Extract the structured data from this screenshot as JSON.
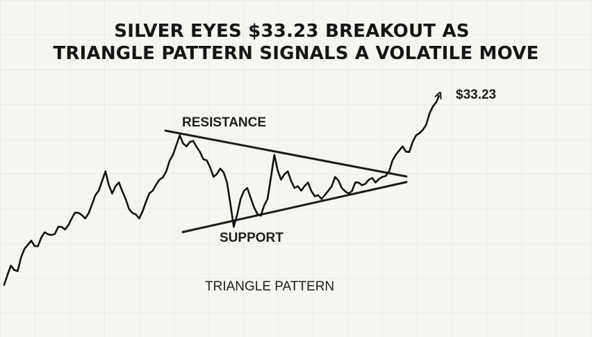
{
  "headline": {
    "line1": "SILVER EYES $33.23 BREAKOUT AS",
    "line2": "TRIANGLE PATTERN SIGNALS A VOLATILE MOVE"
  },
  "chart_data": {
    "type": "line",
    "title": "SILVER EYES $33.23 BREAKOUT AS TRIANGLE PATTERN SIGNALS A VOLATILE MOVE",
    "xlabel": "",
    "ylabel": "",
    "grid": true,
    "legend": "none",
    "series": [
      {
        "values": [
          26.5,
          27.2,
          27.0,
          27.8,
          28.1,
          27.9,
          28.4,
          28.3,
          28.6,
          28.5,
          28.9,
          29.1,
          28.9,
          29.4,
          29.9,
          30.6,
          29.8,
          30.2,
          29.6,
          29.1,
          28.9,
          29.5,
          29.9,
          30.3,
          30.6,
          31.2,
          31.9,
          31.5,
          31.7,
          31.3,
          31.0,
          30.4,
          30.7,
          30.2,
          28.6,
          29.6,
          30.0,
          29.3,
          29.0,
          29.6,
          31.2,
          30.3,
          30.6,
          30.0,
          29.9,
          30.2,
          29.7,
          29.6,
          29.9,
          30.4,
          30.0,
          29.8,
          30.2,
          30.1,
          30.3,
          30.2,
          30.4,
          30.6,
          31.2,
          31.5,
          31.3,
          31.9,
          32.1,
          32.7,
          33.1
        ]
      }
    ],
    "annotations": [
      {
        "text": "RESISTANCE"
      },
      {
        "text": "SUPPORT"
      },
      {
        "text": "TRIANGLE PATTERN"
      },
      {
        "text": "$33.23"
      }
    ]
  }
}
